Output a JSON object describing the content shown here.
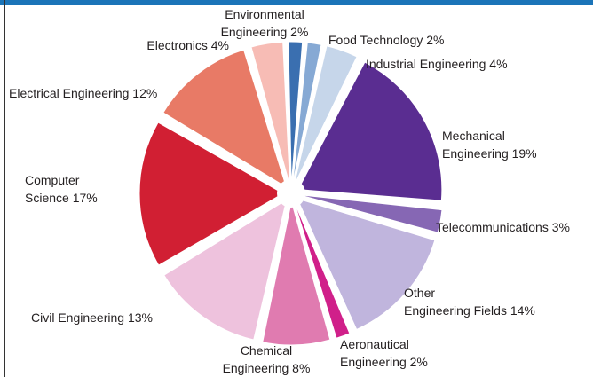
{
  "chart_data": {
    "type": "pie",
    "title": "",
    "exploded": true,
    "slices": [
      {
        "name": "Environmental Engineering",
        "value": 2,
        "color": "#3a6fb0",
        "label_lines": [
          "Environmental",
          "Engineering 2%"
        ]
      },
      {
        "name": "Food Technology",
        "value": 2,
        "color": "#86a9d4",
        "label_lines": [
          "Food Technology 2%"
        ]
      },
      {
        "name": "Industrial Engineering",
        "value": 4,
        "color": "#c6d6ea",
        "label_lines": [
          "Industrial Engineering 4%"
        ]
      },
      {
        "name": "Mechanical Engineering",
        "value": 19,
        "color": "#5a2d91",
        "label_lines": [
          "Mechanical",
          "Engineering 19%"
        ]
      },
      {
        "name": "Telecommunications",
        "value": 3,
        "color": "#8667b4",
        "label_lines": [
          "Telecommunications 3%"
        ]
      },
      {
        "name": "Other Engineering Fields",
        "value": 14,
        "color": "#c0b5dd",
        "label_lines": [
          "Other",
          "Engineering Fields 14%"
        ]
      },
      {
        "name": "Aeronautical Engineering",
        "value": 2,
        "color": "#d0208a",
        "label_lines": [
          "Aeronautical",
          "Engineering 2%"
        ]
      },
      {
        "name": "Chemical Engineering",
        "value": 8,
        "color": "#e07bb0",
        "label_lines": [
          "Chemical",
          "Engineering 8%"
        ]
      },
      {
        "name": "Civil Engineering",
        "value": 13,
        "color": "#eec2dd",
        "label_lines": [
          "Civil Engineering 13%"
        ]
      },
      {
        "name": "Computer Science",
        "value": 17,
        "color": "#d11f33",
        "label_lines": [
          "Computer",
          "Science 17%"
        ]
      },
      {
        "name": "Electrical Engineering",
        "value": 12,
        "color": "#e87a66",
        "label_lines": [
          "Electrical Engineering 12%"
        ]
      },
      {
        "name": "Electronics",
        "value": 4,
        "color": "#f7bcb5",
        "label_lines": [
          "Electronics 4%"
        ]
      }
    ]
  }
}
